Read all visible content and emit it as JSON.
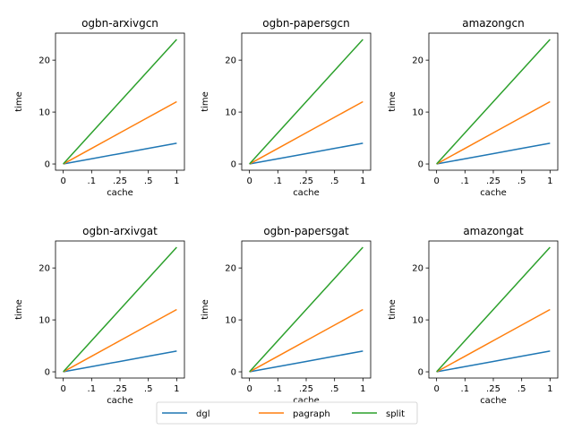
{
  "chart_data": {
    "type": "line",
    "x": [
      "0",
      ".1",
      ".25",
      ".5",
      "1"
    ],
    "xlabel": "cache",
    "ylabel": "time",
    "ylim": [
      -1.2,
      25.2
    ],
    "yticks": [
      0,
      10,
      20
    ],
    "grid": false,
    "legend": {
      "placement": "bottom-center",
      "entries": [
        "dgl",
        "pagraph",
        "split"
      ]
    },
    "series_colors": {
      "dgl": "#1f77b4",
      "pagraph": "#ff7f0e",
      "split": "#2ca02c"
    },
    "panels": [
      {
        "title": "ogbn-arxivgcn",
        "series": [
          {
            "name": "dgl",
            "values": [
              0,
              1,
              2,
              3,
              4
            ]
          },
          {
            "name": "pagraph",
            "values": [
              0,
              3,
              6,
              9,
              12
            ]
          },
          {
            "name": "split",
            "values": [
              0,
              6,
              12,
              18,
              24
            ]
          }
        ]
      },
      {
        "title": "ogbn-papersgcn",
        "series": [
          {
            "name": "dgl",
            "values": [
              0,
              1,
              2,
              3,
              4
            ]
          },
          {
            "name": "pagraph",
            "values": [
              0,
              3,
              6,
              9,
              12
            ]
          },
          {
            "name": "split",
            "values": [
              0,
              6,
              12,
              18,
              24
            ]
          }
        ]
      },
      {
        "title": "amazongcn",
        "series": [
          {
            "name": "dgl",
            "values": [
              0,
              1,
              2,
              3,
              4
            ]
          },
          {
            "name": "pagraph",
            "values": [
              0,
              3,
              6,
              9,
              12
            ]
          },
          {
            "name": "split",
            "values": [
              0,
              6,
              12,
              18,
              24
            ]
          }
        ]
      },
      {
        "title": "ogbn-arxivgat",
        "series": [
          {
            "name": "dgl",
            "values": [
              0,
              1,
              2,
              3,
              4
            ]
          },
          {
            "name": "pagraph",
            "values": [
              0,
              3,
              6,
              9,
              12
            ]
          },
          {
            "name": "split",
            "values": [
              0,
              6,
              12,
              18,
              24
            ]
          }
        ]
      },
      {
        "title": "ogbn-papersgat",
        "series": [
          {
            "name": "dgl",
            "values": [
              0,
              1,
              2,
              3,
              4
            ]
          },
          {
            "name": "pagraph",
            "values": [
              0,
              3,
              6,
              9,
              12
            ]
          },
          {
            "name": "split",
            "values": [
              0,
              6,
              12,
              18,
              24
            ]
          }
        ]
      },
      {
        "title": "amazongat",
        "series": [
          {
            "name": "dgl",
            "values": [
              0,
              1,
              2,
              3,
              4
            ]
          },
          {
            "name": "pagraph",
            "values": [
              0,
              3,
              6,
              9,
              12
            ]
          },
          {
            "name": "split",
            "values": [
              0,
              6,
              12,
              18,
              24
            ]
          }
        ]
      }
    ]
  }
}
